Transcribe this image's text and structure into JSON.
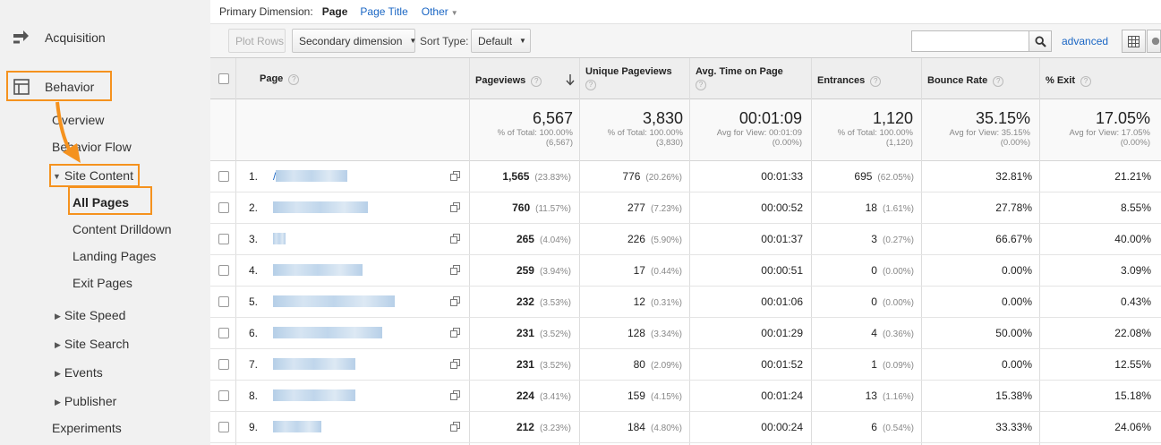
{
  "sidebar": {
    "acquisition_label": "Acquisition",
    "behavior_label": "Behavior",
    "items": {
      "overview": "Overview",
      "behavior_flow": "Behavior Flow",
      "site_content": "Site Content",
      "all_pages": "All Pages",
      "content_drilldown": "Content Drilldown",
      "landing_pages": "Landing Pages",
      "exit_pages": "Exit Pages",
      "site_speed": "Site Speed",
      "site_search": "Site Search",
      "events": "Events",
      "publisher": "Publisher",
      "experiments": "Experiments"
    },
    "highlight_color": "#f5921e"
  },
  "primary_dimension": {
    "label": "Primary Dimension:",
    "current": "Page",
    "options": [
      "Page Title",
      "Other"
    ]
  },
  "controls": {
    "plot_rows": "Plot Rows",
    "secondary_dimension": "Secondary dimension",
    "sort_type_label": "Sort Type:",
    "sort_type_value": "Default",
    "search_value": "",
    "advanced": "advanced"
  },
  "table": {
    "headers": {
      "page": "Page",
      "pageviews": "Pageviews",
      "unique_pageviews": "Unique Pageviews",
      "avg_time": "Avg. Time on Page",
      "entrances": "Entrances",
      "bounce_rate": "Bounce Rate",
      "exit": "% Exit"
    },
    "totals": {
      "pageviews": {
        "value": "6,567",
        "line1": "% of Total: 100.00%",
        "line2": "(6,567)"
      },
      "unique_pageviews": {
        "value": "3,830",
        "line1": "% of Total: 100.00%",
        "line2": "(3,830)"
      },
      "avg_time": {
        "value": "00:01:09",
        "line1": "Avg for View: 00:01:09",
        "line2": "(0.00%)"
      },
      "entrances": {
        "value": "1,120",
        "line1": "% of Total: 100.00%",
        "line2": "(1,120)"
      },
      "bounce_rate": {
        "value": "35.15%",
        "line1": "Avg for View: 35.15%",
        "line2": "(0.00%)"
      },
      "exit": {
        "value": "17.05%",
        "line1": "Avg for View: 17.05%",
        "line2": "(0.00%)"
      }
    },
    "rows": [
      {
        "num": "1.",
        "page": "/",
        "pv": "1,565",
        "pv_pct": "(23.83%)",
        "upv": "776",
        "upv_pct": "(20.26%)",
        "time": "00:01:33",
        "ent": "695",
        "ent_pct": "(62.05%)",
        "bounce": "32.81%",
        "exit": "21.21%"
      },
      {
        "num": "2.",
        "page": "",
        "pv": "760",
        "pv_pct": "(11.57%)",
        "upv": "277",
        "upv_pct": "(7.23%)",
        "time": "00:00:52",
        "ent": "18",
        "ent_pct": "(1.61%)",
        "bounce": "27.78%",
        "exit": "8.55%"
      },
      {
        "num": "3.",
        "page": "",
        "pv": "265",
        "pv_pct": "(4.04%)",
        "upv": "226",
        "upv_pct": "(5.90%)",
        "time": "00:01:37",
        "ent": "3",
        "ent_pct": "(0.27%)",
        "bounce": "66.67%",
        "exit": "40.00%"
      },
      {
        "num": "4.",
        "page": "",
        "pv": "259",
        "pv_pct": "(3.94%)",
        "upv": "17",
        "upv_pct": "(0.44%)",
        "time": "00:00:51",
        "ent": "0",
        "ent_pct": "(0.00%)",
        "bounce": "0.00%",
        "exit": "3.09%"
      },
      {
        "num": "5.",
        "page": "",
        "pv": "232",
        "pv_pct": "(3.53%)",
        "upv": "12",
        "upv_pct": "(0.31%)",
        "time": "00:01:06",
        "ent": "0",
        "ent_pct": "(0.00%)",
        "bounce": "0.00%",
        "exit": "0.43%"
      },
      {
        "num": "6.",
        "page": "",
        "pv": "231",
        "pv_pct": "(3.52%)",
        "upv": "128",
        "upv_pct": "(3.34%)",
        "time": "00:01:29",
        "ent": "4",
        "ent_pct": "(0.36%)",
        "bounce": "50.00%",
        "exit": "22.08%"
      },
      {
        "num": "7.",
        "page": "",
        "pv": "231",
        "pv_pct": "(3.52%)",
        "upv": "80",
        "upv_pct": "(2.09%)",
        "time": "00:01:52",
        "ent": "1",
        "ent_pct": "(0.09%)",
        "bounce": "0.00%",
        "exit": "12.55%"
      },
      {
        "num": "8.",
        "page": "",
        "pv": "224",
        "pv_pct": "(3.41%)",
        "upv": "159",
        "upv_pct": "(4.15%)",
        "time": "00:01:24",
        "ent": "13",
        "ent_pct": "(1.16%)",
        "bounce": "15.38%",
        "exit": "15.18%"
      },
      {
        "num": "9.",
        "page": "",
        "pv": "212",
        "pv_pct": "(3.23%)",
        "upv": "184",
        "upv_pct": "(4.80%)",
        "time": "00:00:24",
        "ent": "6",
        "ent_pct": "(0.54%)",
        "bounce": "33.33%",
        "exit": "24.06%"
      }
    ]
  },
  "icons": {
    "acquisition": "acquisition-arrows-icon",
    "behavior": "behavior-layout-icon",
    "sort": "sort-down-arrow-icon",
    "search": "search-icon",
    "open_page": "open-page-icon",
    "grid_view": "grid-view-icon",
    "pie_view": "pie-view-icon"
  }
}
